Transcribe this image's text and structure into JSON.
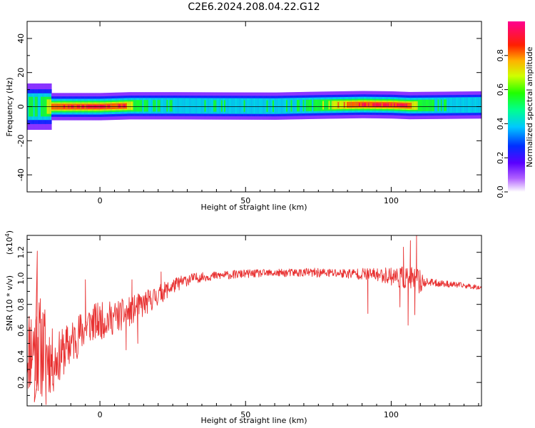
{
  "figure": {
    "title": "C2E6.2024.208.04.22.G12"
  },
  "chart_data": [
    {
      "type": "heatmap",
      "xlabel": "Height of straight line (km)",
      "ylabel": "Frequency (Hz)",
      "xlim": [
        -25,
        131
      ],
      "ylim": [
        -50,
        50
      ],
      "xticks": [
        0,
        50,
        100
      ],
      "yticks": [
        -40,
        -20,
        0,
        20,
        40
      ],
      "colorbar": {
        "label": "Normalized spectral amplitude",
        "range": [
          0.0,
          1.0
        ],
        "ticks": [
          0.0,
          0.2,
          0.4,
          0.6,
          0.8
        ],
        "colormap": "hsv-reversed (magenta high, violet low)"
      },
      "band_center_hz": [
        [
          -25,
          0
        ],
        [
          -18,
          0
        ],
        [
          -10,
          0
        ],
        [
          0,
          0
        ],
        [
          10,
          0.5
        ],
        [
          25,
          0.5
        ],
        [
          40,
          0.4
        ],
        [
          60,
          0.3
        ],
        [
          75,
          0.8
        ],
        [
          90,
          1.2
        ],
        [
          100,
          1.0
        ],
        [
          106,
          0.6
        ],
        [
          131,
          1.0
        ]
      ],
      "band_peak_amplitude": [
        [
          -25,
          0.55
        ],
        [
          -20,
          0.6
        ],
        [
          -16,
          0.85
        ],
        [
          -10,
          0.95
        ],
        [
          -5,
          0.95
        ],
        [
          0,
          1.0
        ],
        [
          5,
          0.9
        ],
        [
          8,
          0.95
        ],
        [
          12,
          0.6
        ],
        [
          20,
          0.55
        ],
        [
          30,
          0.5
        ],
        [
          40,
          0.5
        ],
        [
          55,
          0.5
        ],
        [
          70,
          0.55
        ],
        [
          80,
          0.75
        ],
        [
          88,
          0.9
        ],
        [
          95,
          0.95
        ],
        [
          105,
          0.95
        ],
        [
          110,
          0.65
        ],
        [
          120,
          0.5
        ],
        [
          131,
          0.5
        ]
      ]
    },
    {
      "type": "line",
      "xlabel": "Height of straight line (km)",
      "ylabel": "SNR (10 * v/v)",
      "scale_label": "(x10",
      "scale_exponent": "4",
      "xlim": [
        -25,
        131
      ],
      "ylim": [
        0.02,
        1.33
      ],
      "xticks": [
        0,
        50,
        100
      ],
      "yticks": [
        0.2,
        0.4,
        0.6,
        0.8,
        1.0,
        1.2
      ],
      "color": "#e83030",
      "series": [
        {
          "trend": [
            [
              -25,
              0.45
            ],
            [
              -22,
              0.5
            ],
            [
              -19,
              0.45
            ],
            [
              -16,
              0.35
            ],
            [
              -12,
              0.45
            ],
            [
              -8,
              0.55
            ],
            [
              -4,
              0.65
            ],
            [
              0,
              0.67
            ],
            [
              5,
              0.7
            ],
            [
              10,
              0.74
            ],
            [
              15,
              0.8
            ],
            [
              20,
              0.87
            ],
            [
              25,
              0.94
            ],
            [
              30,
              0.99
            ],
            [
              35,
              1.01
            ],
            [
              40,
              1.02
            ],
            [
              50,
              1.035
            ],
            [
              60,
              1.04
            ],
            [
              70,
              1.045
            ],
            [
              80,
              1.04
            ],
            [
              90,
              1.035
            ],
            [
              100,
              1.02
            ],
            [
              105,
              1.0
            ],
            [
              110,
              0.975
            ],
            [
              120,
              0.955
            ],
            [
              131,
              0.93
            ]
          ],
          "noise": [
            [
              -25,
              0.35
            ],
            [
              -20,
              0.4
            ],
            [
              -15,
              0.2
            ],
            [
              -5,
              0.16
            ],
            [
              5,
              0.13
            ],
            [
              15,
              0.1
            ],
            [
              25,
              0.06
            ],
            [
              35,
              0.035
            ],
            [
              60,
              0.03
            ],
            [
              85,
              0.04
            ],
            [
              95,
              0.05
            ],
            [
              104,
              0.09
            ],
            [
              110,
              0.1
            ],
            [
              112,
              0.03
            ],
            [
              131,
              0.018
            ]
          ],
          "features": [
            [
              -21.5,
              1.21
            ],
            [
              -22.5,
              0.05
            ],
            [
              -18.5,
              0.03
            ],
            [
              -5,
              0.99
            ],
            [
              -3.5,
              0.55
            ],
            [
              9,
              0.45
            ],
            [
              11,
              0.99
            ],
            [
              13,
              0.5
            ],
            [
              21,
              1.05
            ],
            [
              92,
              0.73
            ],
            [
              103,
              0.78
            ],
            [
              104.2,
              1.24
            ],
            [
              105.8,
              0.64
            ],
            [
              106.6,
              1.29
            ],
            [
              108.1,
              0.72
            ],
            [
              108.7,
              1.33
            ],
            [
              110,
              0.97
            ]
          ]
        }
      ]
    }
  ]
}
